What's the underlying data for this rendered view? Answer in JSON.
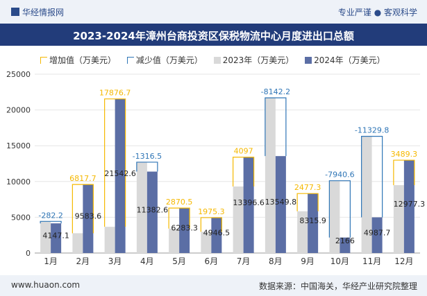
{
  "header": {
    "brand": "华经情报网",
    "tagline": "专业严谨 ● 客观科学"
  },
  "footer": {
    "site": "www.huaon.com",
    "source": "数据来源：中国海关，华经产业研究院整理"
  },
  "colors": {
    "increase": "#f5b800",
    "decrease": "#2e75b6",
    "y2023": "#d9d9d9",
    "y2024": "#5b6ea5",
    "title_bg": "#223c7a"
  },
  "chart_data": {
    "type": "bar",
    "title": "2023-2024年漳州台商投资区保税物流中心月度进出口总额",
    "legend": [
      "增加值（万美元）",
      "减少值（万美元）",
      "2023年（万美元）",
      "2024年（万美元）"
    ],
    "legend_position": "top",
    "categories": [
      "1月",
      "2月",
      "3月",
      "4月",
      "5月",
      "6月",
      "7月",
      "8月",
      "9月",
      "10月",
      "11月",
      "12月"
    ],
    "series": [
      {
        "name": "2023年（万美元）",
        "values": [
          4429.3,
          2765.9,
          3665.8,
          12699.1,
          3412.8,
          2971.2,
          9299.6,
          21692.0,
          5838.6,
          10106.6,
          16317.5,
          9488.0
        ]
      },
      {
        "name": "2024年（万美元）",
        "values": [
          4147.1,
          9583.6,
          21542.6,
          11382.6,
          6283.3,
          4946.5,
          13396.6,
          13549.8,
          8315.9,
          2166.0,
          4987.7,
          12977.3
        ]
      }
    ],
    "changes": [
      -282.2,
      6817.7,
      17876.7,
      -1316.5,
      2870.5,
      1975.3,
      4097,
      -8142.2,
      2477.3,
      -7940.6,
      -11329.8,
      3489.3
    ],
    "change_labels": [
      "-282.2",
      "6817.7",
      "17876.7",
      "-1316.5",
      "2870.5",
      "1975.3",
      "4097",
      "-8142.2",
      "2477.3",
      "-7940.6",
      "-11329.8",
      "3489.3"
    ],
    "value_labels": [
      "4147.1",
      "9583.6",
      "21542.6",
      "11382.6",
      "6283.3",
      "4946.5",
      "13396.6",
      "13549.8",
      "8315.9",
      "2166",
      "4987.7",
      "12977.3"
    ],
    "yticks": [
      "0",
      "5000",
      "10000",
      "15000",
      "20000",
      "25000"
    ],
    "ylim": [
      0,
      25000
    ],
    "grid": true
  }
}
